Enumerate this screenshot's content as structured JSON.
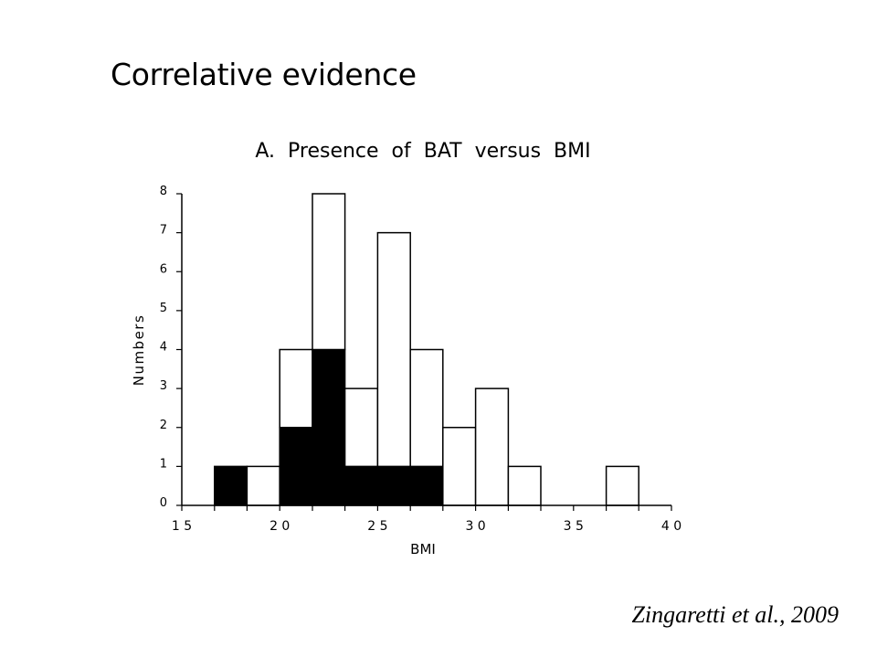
{
  "slide": {
    "title": "Correlative evidence",
    "citation": "Zingaretti et al., 2009"
  },
  "colors": {
    "bat_present": "#000000",
    "bat_absent": "#ffffff",
    "outline": "#000000"
  },
  "chart_data": {
    "type": "bar",
    "subtype": "stacked-histogram",
    "title": "A.  Presence  of  BAT  versus  BMI",
    "xlabel": "BMI",
    "ylabel": "Numbers",
    "xlim": [
      15,
      40
    ],
    "ylim": [
      0,
      8
    ],
    "xticks": [
      15,
      16.67,
      18.33,
      20,
      21.67,
      23.33,
      25,
      26.67,
      28.33,
      30,
      31.67,
      33.33,
      35,
      36.67,
      38.33,
      40
    ],
    "xtick_labels": [
      {
        "value": 15,
        "label": "1 5"
      },
      {
        "value": 20,
        "label": "2 0"
      },
      {
        "value": 25,
        "label": "2 5"
      },
      {
        "value": 30,
        "label": "3 0"
      },
      {
        "value": 35,
        "label": "3 5"
      },
      {
        "value": 40,
        "label": "4 0"
      }
    ],
    "yticks": [
      0,
      1,
      2,
      3,
      4,
      5,
      6,
      7,
      8
    ],
    "grid": false,
    "bins": [
      {
        "start": 16.67,
        "end": 18.33,
        "present": 1,
        "absent": 0
      },
      {
        "start": 18.33,
        "end": 20.0,
        "present": 0,
        "absent": 1
      },
      {
        "start": 20.0,
        "end": 21.67,
        "present": 2,
        "absent": 2
      },
      {
        "start": 21.67,
        "end": 23.33,
        "present": 4,
        "absent": 4
      },
      {
        "start": 23.33,
        "end": 25.0,
        "present": 1,
        "absent": 2
      },
      {
        "start": 25.0,
        "end": 26.67,
        "present": 1,
        "absent": 6
      },
      {
        "start": 26.67,
        "end": 28.33,
        "present": 1,
        "absent": 3
      },
      {
        "start": 28.33,
        "end": 30.0,
        "present": 0,
        "absent": 2
      },
      {
        "start": 30.0,
        "end": 31.67,
        "present": 0,
        "absent": 3
      },
      {
        "start": 31.67,
        "end": 33.33,
        "present": 0,
        "absent": 1
      },
      {
        "start": 36.67,
        "end": 38.33,
        "present": 0,
        "absent": 1
      }
    ]
  }
}
